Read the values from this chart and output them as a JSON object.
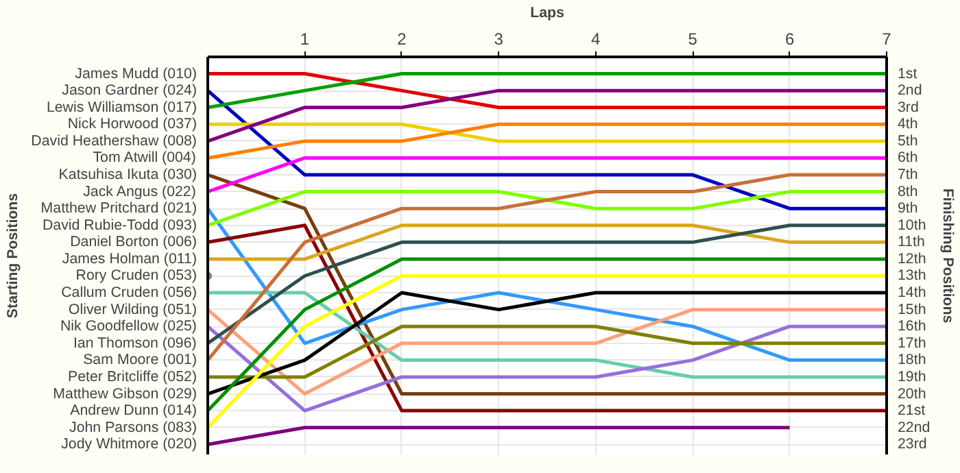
{
  "chart_data": {
    "type": "line",
    "xlabel": "Laps",
    "legend_title": "Starting Positions",
    "legend": "left",
    "y2label": "Finishing Positions",
    "x": [
      0,
      1,
      2,
      3,
      4,
      5,
      6,
      7
    ],
    "xlim": [
      0,
      7
    ],
    "xticks": [
      1,
      2,
      3,
      4,
      5,
      6,
      7
    ],
    "y2lim": [
      23.6,
      0
    ],
    "y2ticks": [
      {
        "value": 1,
        "label": "1st"
      },
      {
        "value": 2,
        "label": "2nd"
      },
      {
        "value": 3,
        "label": "3rd"
      },
      {
        "value": 4,
        "label": "4th"
      },
      {
        "value": 5,
        "label": "5th"
      },
      {
        "value": 6,
        "label": "6th"
      },
      {
        "value": 7,
        "label": "7th"
      },
      {
        "value": 8,
        "label": "8th"
      },
      {
        "value": 9,
        "label": "9th"
      },
      {
        "value": 10,
        "label": "10th"
      },
      {
        "value": 11,
        "label": "11th"
      },
      {
        "value": 12,
        "label": "12th"
      },
      {
        "value": 13,
        "label": "13th"
      },
      {
        "value": 14,
        "label": "14th"
      },
      {
        "value": 15,
        "label": "15th"
      },
      {
        "value": 16,
        "label": "16th"
      },
      {
        "value": 17,
        "label": "17th"
      },
      {
        "value": 18,
        "label": "18th"
      },
      {
        "value": 19,
        "label": "19th"
      },
      {
        "value": 20,
        "label": "20th"
      },
      {
        "value": 21,
        "label": "21st"
      },
      {
        "value": 22,
        "label": "22nd"
      },
      {
        "value": 23,
        "label": "23rd"
      }
    ],
    "grid": true,
    "series": [
      {
        "name": "James Mudd (010)",
        "axis": "y2",
        "color": "#e00000",
        "values": [
          1,
          1,
          2,
          3,
          3,
          3,
          3,
          3
        ]
      },
      {
        "name": "Jason Gardner (024)",
        "axis": "y2",
        "color": "#0000c0",
        "values": [
          2,
          7,
          7,
          7,
          7,
          7,
          9,
          9
        ]
      },
      {
        "name": "Lewis Williamson (017)",
        "axis": "y2",
        "color": "#00a000",
        "values": [
          3,
          2,
          1,
          1,
          1,
          1,
          1,
          1
        ]
      },
      {
        "name": "Nick Horwood (037)",
        "axis": "y2",
        "color": "#f0d000",
        "values": [
          4,
          4,
          4,
          5,
          5,
          5,
          5,
          5
        ]
      },
      {
        "name": "David Heathershaw (008)",
        "axis": "y2",
        "color": "#800080",
        "values": [
          5,
          3,
          3,
          2,
          2,
          2,
          2,
          2
        ]
      },
      {
        "name": "Tom Atwill (004)",
        "axis": "y2",
        "color": "#ff8000",
        "values": [
          6,
          5,
          5,
          4,
          4,
          4,
          4,
          4
        ]
      },
      {
        "name": "Katsuhisa Ikuta (030)",
        "axis": "y2",
        "color": "#7a3d0a",
        "values": [
          7,
          9,
          20,
          20,
          20,
          20,
          20,
          20
        ]
      },
      {
        "name": "Jack Angus (022)",
        "axis": "y2",
        "color": "#ff00ff",
        "values": [
          8,
          6,
          6,
          6,
          6,
          6,
          6,
          6
        ]
      },
      {
        "name": "Matthew Pritchard (021)",
        "axis": "y2",
        "color": "#3399ff",
        "values": [
          9,
          17,
          15,
          14,
          15,
          16,
          18,
          18
        ]
      },
      {
        "name": "David Rubie-Todd (093)",
        "axis": "y2",
        "color": "#80ff00",
        "values": [
          10,
          8,
          8,
          8,
          9,
          9,
          8,
          8
        ]
      },
      {
        "name": "Daniel Borton (006)",
        "axis": "y2",
        "color": "#8b0000",
        "values": [
          11,
          10,
          21,
          21,
          21,
          21,
          21,
          21
        ]
      },
      {
        "name": "James Holman (011)",
        "axis": "y2",
        "color": "#daa520",
        "values": [
          12,
          12,
          10,
          10,
          10,
          10,
          11,
          11
        ]
      },
      {
        "name": "Rory Cruden (053)",
        "axis": "y2",
        "color": "#808080",
        "marker": "circle",
        "values": [
          13,
          null,
          null,
          null,
          null,
          null,
          null,
          null
        ]
      },
      {
        "name": "Callum Cruden (056)",
        "axis": "y2",
        "color": "#66cdaa",
        "values": [
          14,
          14,
          18,
          18,
          18,
          19,
          19,
          19
        ]
      },
      {
        "name": "Oliver Wilding (051)",
        "axis": "y2",
        "color": "#ffa07a",
        "values": [
          15,
          20,
          17,
          17,
          17,
          15,
          15,
          15
        ]
      },
      {
        "name": "Nik Goodfellow (025)",
        "axis": "y2",
        "color": "#9370db",
        "values": [
          16,
          21,
          19,
          19,
          19,
          18,
          16,
          16
        ]
      },
      {
        "name": "Ian Thomson (096)",
        "axis": "y2",
        "color": "#2f4f4f",
        "values": [
          17,
          13,
          11,
          11,
          11,
          11,
          10,
          10
        ]
      },
      {
        "name": "Sam Moore (001)",
        "axis": "y2",
        "color": "#c87038",
        "values": [
          18,
          11,
          9,
          9,
          8,
          8,
          7,
          7
        ]
      },
      {
        "name": "Peter Britcliffe (052)",
        "axis": "y2",
        "color": "#808000",
        "values": [
          19,
          19,
          16,
          16,
          16,
          17,
          17,
          17
        ]
      },
      {
        "name": "Matthew Gibson (029)",
        "axis": "y2",
        "color": "#000000",
        "values": [
          20,
          18,
          14,
          15,
          14,
          14,
          14,
          14
        ]
      },
      {
        "name": "Andrew Dunn (014)",
        "axis": "y2",
        "color": "#009000",
        "values": [
          21,
          15,
          12,
          12,
          12,
          12,
          12,
          12
        ]
      },
      {
        "name": "John Parsons (083)",
        "axis": "y2",
        "color": "#ffff00",
        "values": [
          22,
          16,
          13,
          13,
          13,
          13,
          13,
          13
        ]
      },
      {
        "name": "Jody Whitmore (020)",
        "axis": "y2",
        "color": "#7b007b",
        "values": [
          23,
          22,
          22,
          22,
          22,
          22,
          22,
          null
        ]
      }
    ]
  }
}
